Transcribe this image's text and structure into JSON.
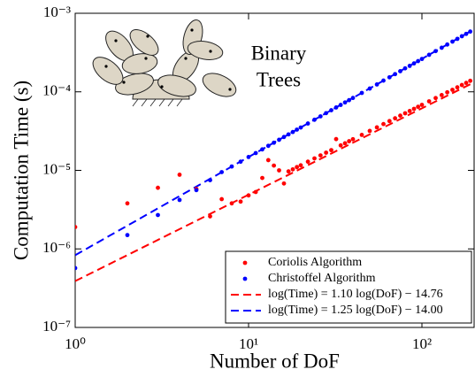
{
  "chart_data": {
    "type": "scatter",
    "x_label": "Number of DoF",
    "y_label": "Computation Time (s)",
    "annotation": [
      "Binary",
      "Trees"
    ],
    "x_log": true,
    "y_log": true,
    "legend": "lower right",
    "xlim": [
      1,
      200
    ],
    "ylim": [
      1e-07,
      0.001
    ],
    "xticks": [
      {
        "value": 1,
        "label": "10⁰"
      },
      {
        "value": 10,
        "label": "10¹"
      },
      {
        "value": 100,
        "label": "10²"
      }
    ],
    "yticks": [
      {
        "value": 1e-07,
        "label": "10⁻⁷"
      },
      {
        "value": 1e-06,
        "label": "10⁻⁶"
      },
      {
        "value": 1e-05,
        "label": "10⁻⁵"
      },
      {
        "value": 0.0001,
        "label": "10⁻⁴"
      },
      {
        "value": 0.001,
        "label": "10⁻³"
      }
    ],
    "x": [
      1,
      2,
      3,
      4,
      5,
      6,
      7,
      8,
      9,
      10,
      11,
      12,
      13,
      14,
      15,
      16,
      17,
      18,
      19,
      20,
      22,
      24,
      26,
      28,
      30,
      32,
      34,
      36,
      38,
      40,
      45,
      50,
      55,
      60,
      65,
      70,
      75,
      80,
      85,
      90,
      95,
      100,
      110,
      120,
      130,
      140,
      150,
      160,
      170,
      180,
      190
    ],
    "series": [
      {
        "name": "Coriolis Algorithm",
        "color": "#ff0000",
        "values": [
          1.9e-06,
          3.8e-06,
          6e-06,
          8.8e-06,
          5.8e-06,
          2.6e-06,
          4.3e-06,
          3.8e-06,
          4e-06,
          4.8e-06,
          5.3e-06,
          8e-06,
          1.35e-05,
          1.15e-05,
          1e-05,
          6.8e-06,
          9.7e-06,
          1.03e-05,
          1.1e-05,
          1.16e-05,
          1.29e-05,
          1.42e-05,
          1.55e-05,
          1.68e-05,
          1.81e-05,
          2.5e-05,
          2.08e-05,
          2.21e-05,
          2.35e-05,
          2.49e-05,
          2.83e-05,
          3.18e-05,
          3.53e-05,
          3.89e-05,
          4.24e-05,
          4.6e-05,
          4.97e-05,
          5.33e-05,
          5.7e-05,
          6.07e-05,
          6.44e-05,
          6.82e-05,
          7.57e-05,
          8.33e-05,
          9.09e-05,
          9.86e-05,
          0.000106,
          0.000114,
          0.000122,
          0.00013,
          0.000138
        ]
      },
      {
        "name": "Christoffel Algorithm",
        "color": "#0000ff",
        "values": [
          5.7e-07,
          1.5e-06,
          2.7e-06,
          4.2e-06,
          5.6e-06,
          7.5e-06,
          9.5e-06,
          1.12e-05,
          1.29e-05,
          1.48e-05,
          1.66e-05,
          1.85e-05,
          2.05e-05,
          2.25e-05,
          2.45e-05,
          2.66e-05,
          2.87e-05,
          3.08e-05,
          3.3e-05,
          3.51e-05,
          3.95e-05,
          4.41e-05,
          4.87e-05,
          5.35e-05,
          5.83e-05,
          6.32e-05,
          6.81e-05,
          7.32e-05,
          7.83e-05,
          8.35e-05,
          9.68e-05,
          0.00011,
          0.000124,
          0.000139,
          0.000153,
          0.000168,
          0.000183,
          0.000199,
          0.000214,
          0.00023,
          0.000246,
          0.000262,
          0.000296,
          0.00033,
          0.000364,
          0.0004,
          0.000436,
          0.000472,
          0.00051,
          0.000547,
          0.000585
        ]
      }
    ],
    "fits": [
      {
        "name": "log(Time) = 1.10 log(DoF) − 14.76",
        "slope": 1.1,
        "intercept": -14.76,
        "color": "#ff0000"
      },
      {
        "name": "log(Time) = 1.25 log(DoF) − 14.00",
        "slope": 1.25,
        "intercept": -14.0,
        "color": "#0000ff"
      }
    ]
  }
}
